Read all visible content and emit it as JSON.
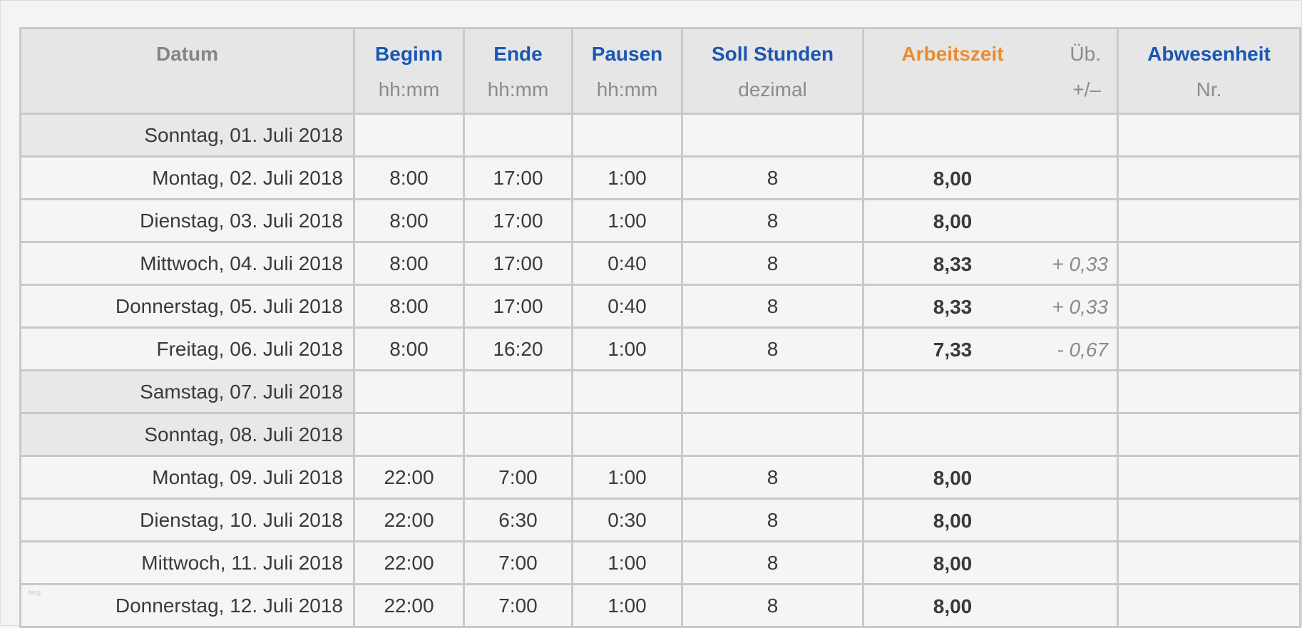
{
  "header": {
    "datum": "Datum",
    "beginn": {
      "title": "Beginn",
      "unit": "hh:mm"
    },
    "ende": {
      "title": "Ende",
      "unit": "hh:mm"
    },
    "pausen": {
      "title": "Pausen",
      "unit": "hh:mm"
    },
    "soll": {
      "title": "Soll Stunden",
      "unit": "dezimal"
    },
    "arbeitszeit": {
      "title": "Arbeitszeit"
    },
    "ueberstunden": {
      "title": "Üb.",
      "unit": "+/–"
    },
    "abwesenheit": {
      "title": "Abwesenheit",
      "unit": "Nr."
    }
  },
  "colors": {
    "blue": "#1a56b3",
    "orange": "#e88e2f",
    "weekend_bg": "#e8e8e8"
  },
  "rows": [
    {
      "date": "Sonntag, 01. Juli 2018",
      "weekend": true,
      "beginn": "",
      "ende": "",
      "pausen": "",
      "soll": "",
      "arbeitszeit": "",
      "ueb": "",
      "abw": ""
    },
    {
      "date": "Montag, 02. Juli 2018",
      "weekend": false,
      "beginn": "8:00",
      "ende": "17:00",
      "pausen": "1:00",
      "soll": "8",
      "arbeitszeit": "8,00",
      "ueb": "",
      "abw": ""
    },
    {
      "date": "Dienstag, 03. Juli 2018",
      "weekend": false,
      "beginn": "8:00",
      "ende": "17:00",
      "pausen": "1:00",
      "soll": "8",
      "arbeitszeit": "8,00",
      "ueb": "",
      "abw": ""
    },
    {
      "date": "Mittwoch, 04. Juli 2018",
      "weekend": false,
      "beginn": "8:00",
      "ende": "17:00",
      "pausen": "0:40",
      "soll": "8",
      "arbeitszeit": "8,33",
      "ueb": "+ 0,33",
      "abw": ""
    },
    {
      "date": "Donnerstag, 05. Juli 2018",
      "weekend": false,
      "beginn": "8:00",
      "ende": "17:00",
      "pausen": "0:40",
      "soll": "8",
      "arbeitszeit": "8,33",
      "ueb": "+ 0,33",
      "abw": ""
    },
    {
      "date": "Freitag, 06. Juli 2018",
      "weekend": false,
      "beginn": "8:00",
      "ende": "16:20",
      "pausen": "1:00",
      "soll": "8",
      "arbeitszeit": "7,33",
      "ueb": "- 0,67",
      "abw": ""
    },
    {
      "date": "Samstag, 07. Juli 2018",
      "weekend": true,
      "beginn": "",
      "ende": "",
      "pausen": "",
      "soll": "",
      "arbeitszeit": "",
      "ueb": "",
      "abw": ""
    },
    {
      "date": "Sonntag, 08. Juli 2018",
      "weekend": true,
      "beginn": "",
      "ende": "",
      "pausen": "",
      "soll": "",
      "arbeitszeit": "",
      "ueb": "",
      "abw": ""
    },
    {
      "date": "Montag, 09. Juli 2018",
      "weekend": false,
      "beginn": "22:00",
      "ende": "7:00",
      "pausen": "1:00",
      "soll": "8",
      "arbeitszeit": "8,00",
      "ueb": "",
      "abw": ""
    },
    {
      "date": "Dienstag, 10. Juli 2018",
      "weekend": false,
      "beginn": "22:00",
      "ende": "6:30",
      "pausen": "0:30",
      "soll": "8",
      "arbeitszeit": "8,00",
      "ueb": "",
      "abw": ""
    },
    {
      "date": "Mittwoch, 11. Juli 2018",
      "weekend": false,
      "beginn": "22:00",
      "ende": "7:00",
      "pausen": "1:00",
      "soll": "8",
      "arbeitszeit": "8,00",
      "ueb": "",
      "abw": ""
    },
    {
      "date": "Donnerstag, 12. Juli 2018",
      "weekend": false,
      "beginn": "22:00",
      "ende": "7:00",
      "pausen": "1:00",
      "soll": "8",
      "arbeitszeit": "8,00",
      "ueb": "",
      "abw": ""
    }
  ],
  "watermark": "blog"
}
